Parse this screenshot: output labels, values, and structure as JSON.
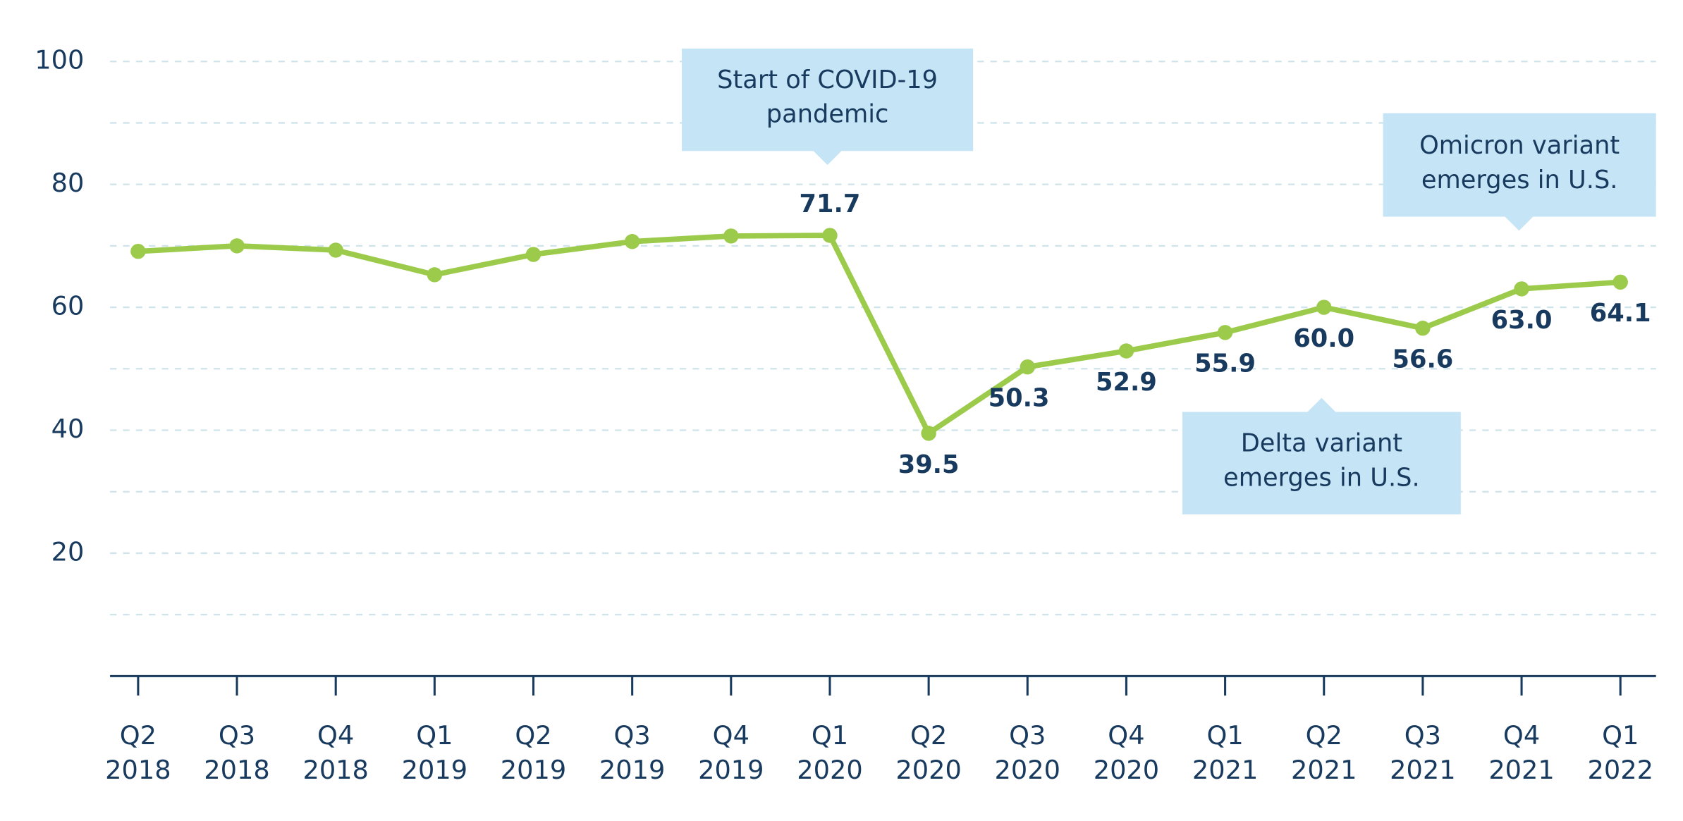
{
  "chart_data": {
    "type": "line",
    "categories": [
      [
        "Q2",
        "2018"
      ],
      [
        "Q3",
        "2018"
      ],
      [
        "Q4",
        "2018"
      ],
      [
        "Q1",
        "2019"
      ],
      [
        "Q2",
        "2019"
      ],
      [
        "Q3",
        "2019"
      ],
      [
        "Q4",
        "2019"
      ],
      [
        "Q1",
        "2020"
      ],
      [
        "Q2",
        "2020"
      ],
      [
        "Q3",
        "2020"
      ],
      [
        "Q4",
        "2020"
      ],
      [
        "Q1",
        "2021"
      ],
      [
        "Q2",
        "2021"
      ],
      [
        "Q3",
        "2021"
      ],
      [
        "Q4",
        "2021"
      ],
      [
        "Q1",
        "2022"
      ]
    ],
    "values": [
      69.1,
      70.0,
      69.3,
      65.3,
      68.6,
      70.7,
      71.6,
      71.7,
      39.5,
      50.3,
      52.9,
      55.9,
      60.0,
      56.6,
      63.0,
      64.1
    ],
    "value_labels": [
      null,
      null,
      null,
      null,
      null,
      null,
      null,
      "71.7",
      "39.5",
      "50.3",
      "52.9",
      "55.9",
      "60.0",
      "56.6",
      "63.0",
      "64.1"
    ],
    "color": "#9ccb4b",
    "ylim": [
      0,
      100
    ],
    "yticks": [
      20,
      40,
      60,
      80,
      100
    ],
    "grid_lines": [
      10,
      20,
      30,
      40,
      50,
      60,
      70,
      80,
      90,
      100
    ],
    "grid": true,
    "annotations": [
      {
        "text": [
          "Start of COVID-19",
          "pandemic"
        ]
      },
      {
        "text": [
          "Omicron variant",
          "emerges in U.S."
        ]
      },
      {
        "text": [
          "Delta variant",
          "emerges in U.S."
        ]
      }
    ]
  }
}
